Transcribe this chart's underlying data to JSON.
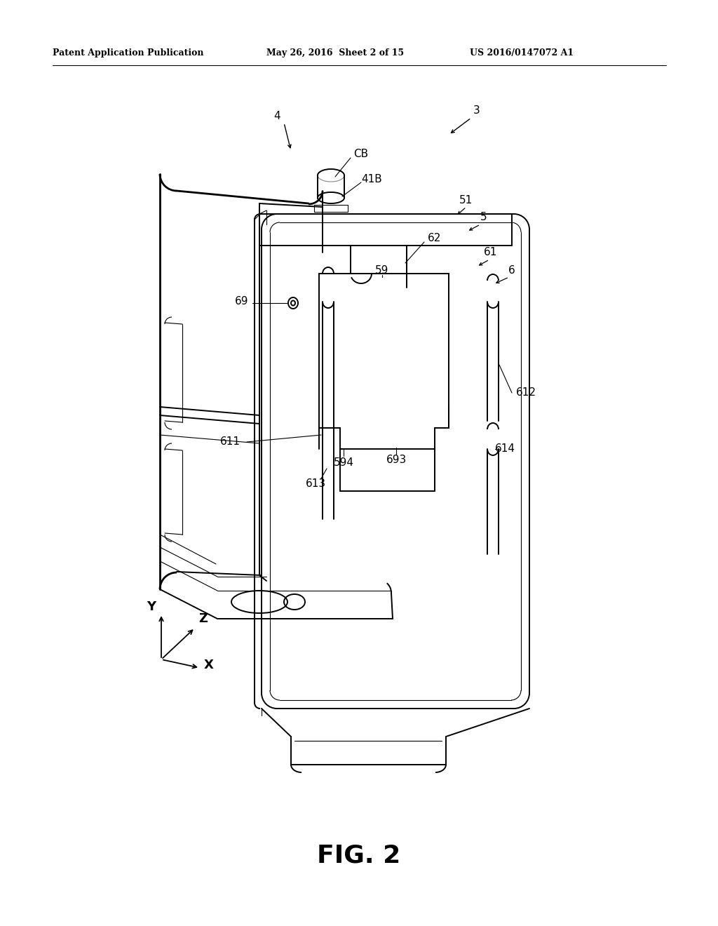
{
  "bg_color": "#ffffff",
  "text_color": "#000000",
  "line_color": "#000000",
  "header_left": "Patent Application Publication",
  "header_mid": "May 26, 2016  Sheet 2 of 15",
  "header_right": "US 2016/0147072 A1",
  "fig_label": "FIG. 2",
  "lw_main": 1.4,
  "lw_thin": 0.8,
  "lw_thick": 2.0,
  "lw_med": 1.1
}
